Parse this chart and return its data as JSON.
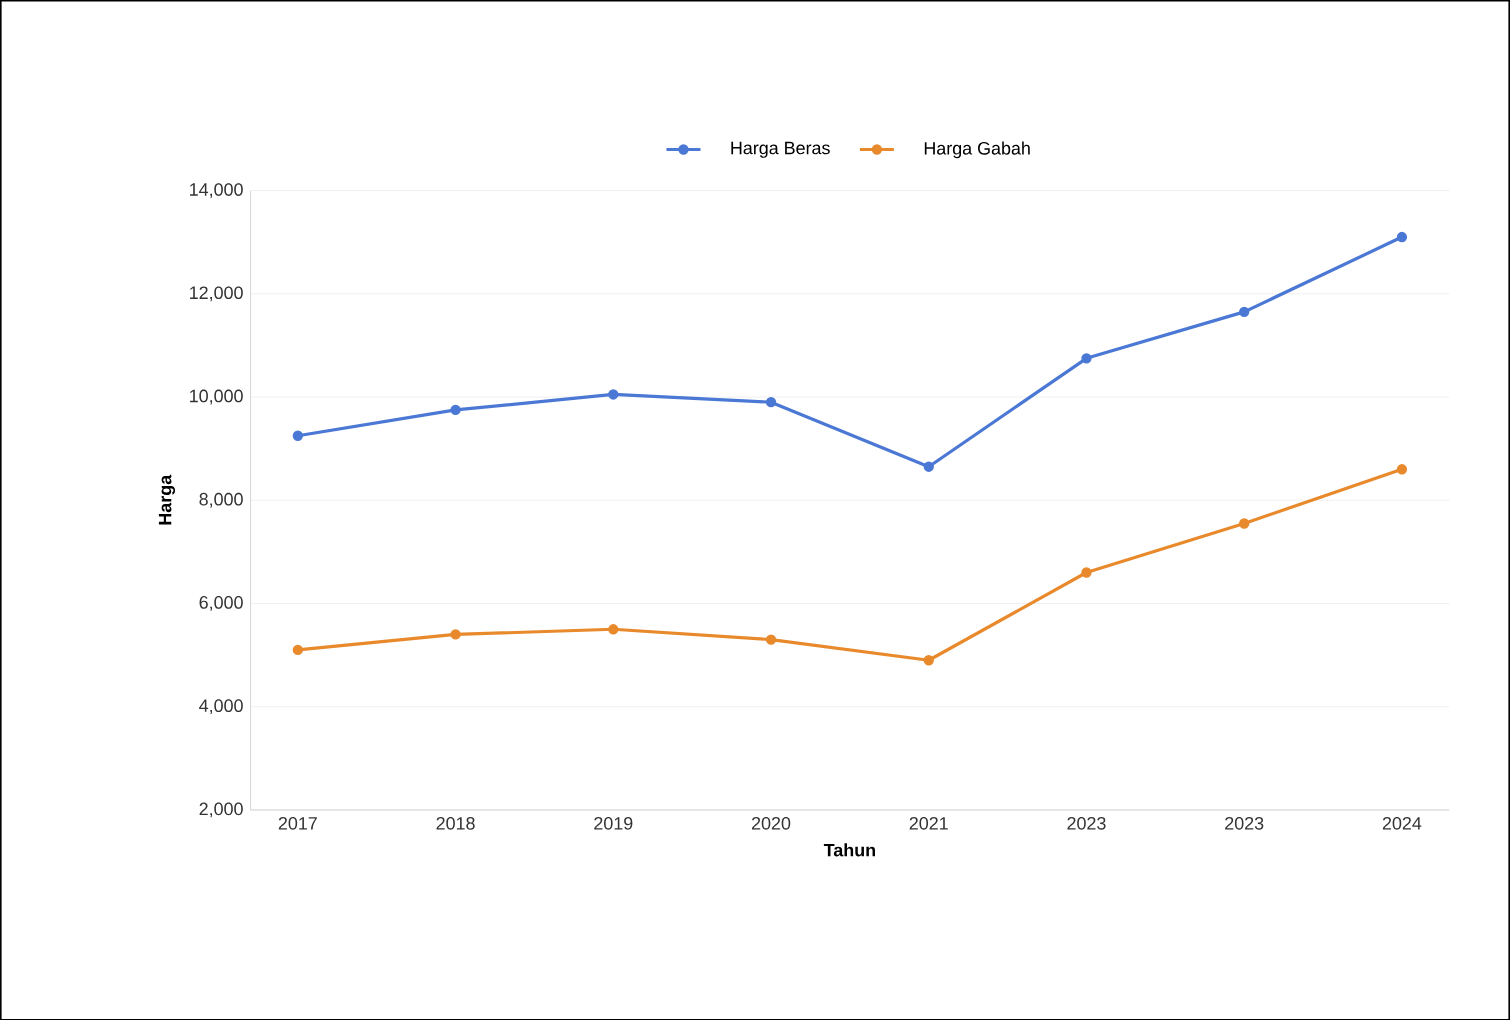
{
  "chart_data": {
    "type": "line",
    "xlabel": "Tahun",
    "ylabel": "Harga",
    "categories": [
      "2017",
      "2018",
      "2019",
      "2020",
      "2021",
      "2023",
      "2023",
      "2024"
    ],
    "series": [
      {
        "name": "Harga Beras",
        "color": "#4a78d4",
        "values": [
          9250,
          9750,
          10050,
          9900,
          8650,
          10750,
          11650,
          13100
        ]
      },
      {
        "name": "Harga Gabah",
        "color": "#e8892c",
        "values": [
          5100,
          5400,
          5500,
          5300,
          4900,
          6600,
          7550,
          8600
        ]
      }
    ],
    "ylim": [
      2000,
      14000
    ],
    "yticks": [
      {
        "value": 2000,
        "label": "2,000"
      },
      {
        "value": 4000,
        "label": "4,000"
      },
      {
        "value": 6000,
        "label": "6,000"
      },
      {
        "value": 8000,
        "label": "8,000"
      },
      {
        "value": 10000,
        "label": "10,000"
      },
      {
        "value": 12000,
        "label": "12,000"
      },
      {
        "value": 14000,
        "label": "14,000"
      }
    ],
    "grid": "y",
    "legend": "top",
    "marker": "circle",
    "line_style": "solid"
  }
}
